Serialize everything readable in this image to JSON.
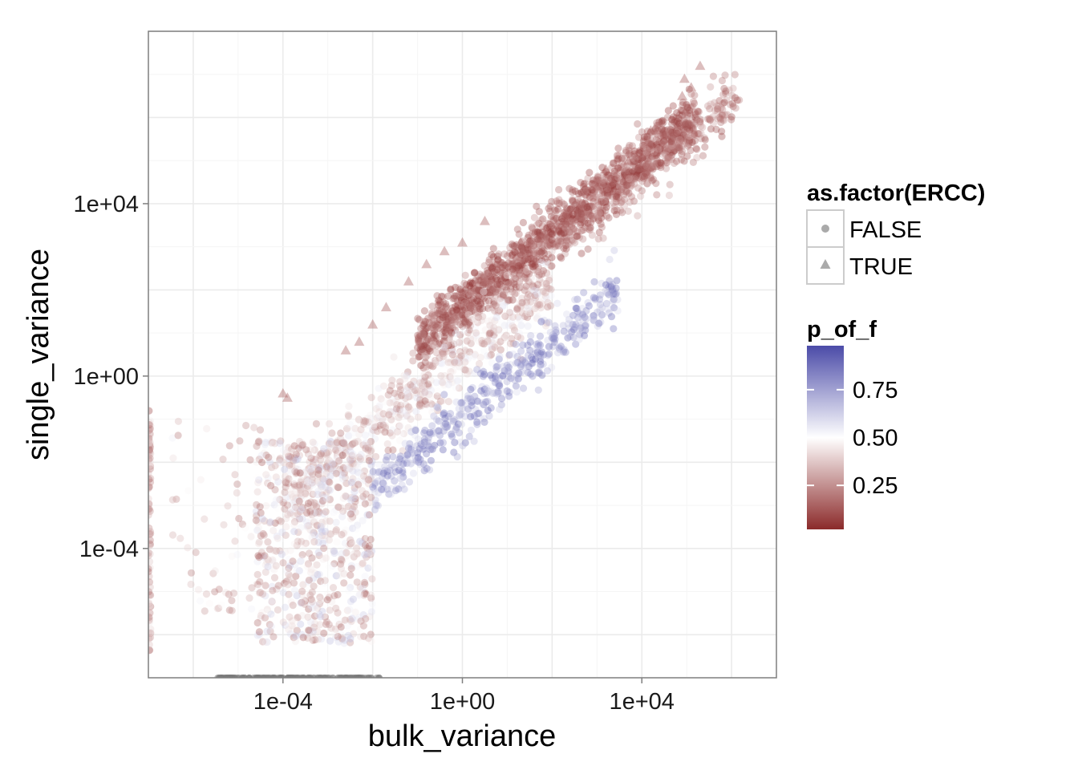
{
  "chart_data": {
    "type": "scatter",
    "x_scale": "log10",
    "y_scale": "log10",
    "xlabel": "bulk_variance",
    "ylabel": "single_variance",
    "xlim": [
      1e-07,
      10000000.0
    ],
    "ylim": [
      1e-07,
      100000000.0
    ],
    "x_ticks": [
      {
        "value": 0.0001,
        "label": "1e-04"
      },
      {
        "value": 1,
        "label": "1e+00"
      },
      {
        "value": 10000.0,
        "label": "1e+04"
      }
    ],
    "y_ticks": [
      {
        "value": 0.0001,
        "label": "1e-04"
      },
      {
        "value": 1,
        "label": "1e+00"
      },
      {
        "value": 10000.0,
        "label": "1e+04"
      }
    ],
    "grid": true,
    "legend_position": "right",
    "shape_legend": {
      "title": "as.factor(ERCC)",
      "items": [
        {
          "label": "FALSE",
          "shape": "circle"
        },
        {
          "label": "TRUE",
          "shape": "triangle"
        }
      ]
    },
    "color_legend": {
      "title": "p_of_f",
      "low_color": "#8B2A2A",
      "mid_color": "#FFFFFF",
      "high_color": "#4B4BA8",
      "ticks": [
        {
          "value": 0.75,
          "label": "0.75"
        },
        {
          "value": 0.5,
          "label": "0.50"
        },
        {
          "value": 0.25,
          "label": "0.25"
        }
      ],
      "range": [
        0.02,
        0.98
      ]
    },
    "point_alpha": 0.35,
    "point_groups": [
      {
        "name": "main_red_band",
        "count": 1400,
        "x_log": [
          -1,
          5.2
        ],
        "slope": 0.85,
        "y_at_x0": 1.6,
        "spread": 0.55,
        "p": [
          0.0,
          0.25
        ]
      },
      {
        "name": "upper_tail_red",
        "count": 220,
        "x_log": [
          3,
          6.2
        ],
        "slope": 0.85,
        "y_at_x0": 1.3,
        "spread": 0.6,
        "p": [
          0.05,
          0.3
        ]
      },
      {
        "name": "mid_mixed_band",
        "count": 700,
        "x_log": [
          -4,
          2
        ],
        "slope": 0.85,
        "y_at_x0": 0.5,
        "spread": 0.7,
        "p": [
          0.15,
          0.6
        ]
      },
      {
        "name": "blue_band",
        "count": 450,
        "x_log": [
          -2,
          3.5
        ],
        "slope": 0.85,
        "y_at_x0": -0.9,
        "spread": 0.55,
        "p": [
          0.6,
          0.98
        ]
      },
      {
        "name": "low_vertical_cluster",
        "count": 650,
        "x_log": [
          -4.6,
          -2.0
        ],
        "y_log": [
          -6.2,
          -1.5
        ],
        "p": [
          0.1,
          0.7
        ]
      },
      {
        "name": "left_sparse",
        "count": 60,
        "x_log": [
          -6.5,
          -4.5
        ],
        "y_log": [
          -5.5,
          -1.0
        ],
        "p": [
          0.15,
          0.55
        ]
      },
      {
        "name": "left_edge_stack",
        "count": 90,
        "x_log": [
          -7.0,
          -6.95
        ],
        "y_log": [
          -6.5,
          -0.8
        ],
        "p": [
          0.1,
          0.45
        ]
      },
      {
        "name": "bottom_row",
        "count": 180,
        "x_log": [
          -5.5,
          -1.8
        ],
        "y_log": [
          -7.0,
          -7.0
        ],
        "p": null
      }
    ],
    "triangle_points": [
      {
        "x": -4.0,
        "y": -0.4
      },
      {
        "x": -3.9,
        "y": -0.5
      },
      {
        "x": -2.6,
        "y": 0.6
      },
      {
        "x": -2.3,
        "y": 0.8
      },
      {
        "x": -2.0,
        "y": 1.2
      },
      {
        "x": -1.7,
        "y": 1.6
      },
      {
        "x": -1.2,
        "y": 2.2
      },
      {
        "x": -0.8,
        "y": 2.6
      },
      {
        "x": -0.4,
        "y": 2.9
      },
      {
        "x": 0.0,
        "y": 3.1
      },
      {
        "x": 0.5,
        "y": 3.6
      },
      {
        "x": 1.3,
        "y": 3.1
      },
      {
        "x": 1.7,
        "y": 3.2
      },
      {
        "x": 2.3,
        "y": 3.6
      },
      {
        "x": 2.6,
        "y": 3.9
      },
      {
        "x": 3.2,
        "y": 4.8
      },
      {
        "x": 3.4,
        "y": 4.3
      },
      {
        "x": 3.0,
        "y": 4.4
      },
      {
        "x": 2.7,
        "y": 4.0
      },
      {
        "x": 3.7,
        "y": 5.0
      },
      {
        "x": 4.2,
        "y": 5.7
      },
      {
        "x": 4.5,
        "y": 5.6
      },
      {
        "x": 5.1,
        "y": 6.7
      },
      {
        "x": 4.9,
        "y": 6.5
      },
      {
        "x": 5.3,
        "y": 7.2
      },
      {
        "x": 4.95,
        "y": 6.9
      }
    ]
  }
}
